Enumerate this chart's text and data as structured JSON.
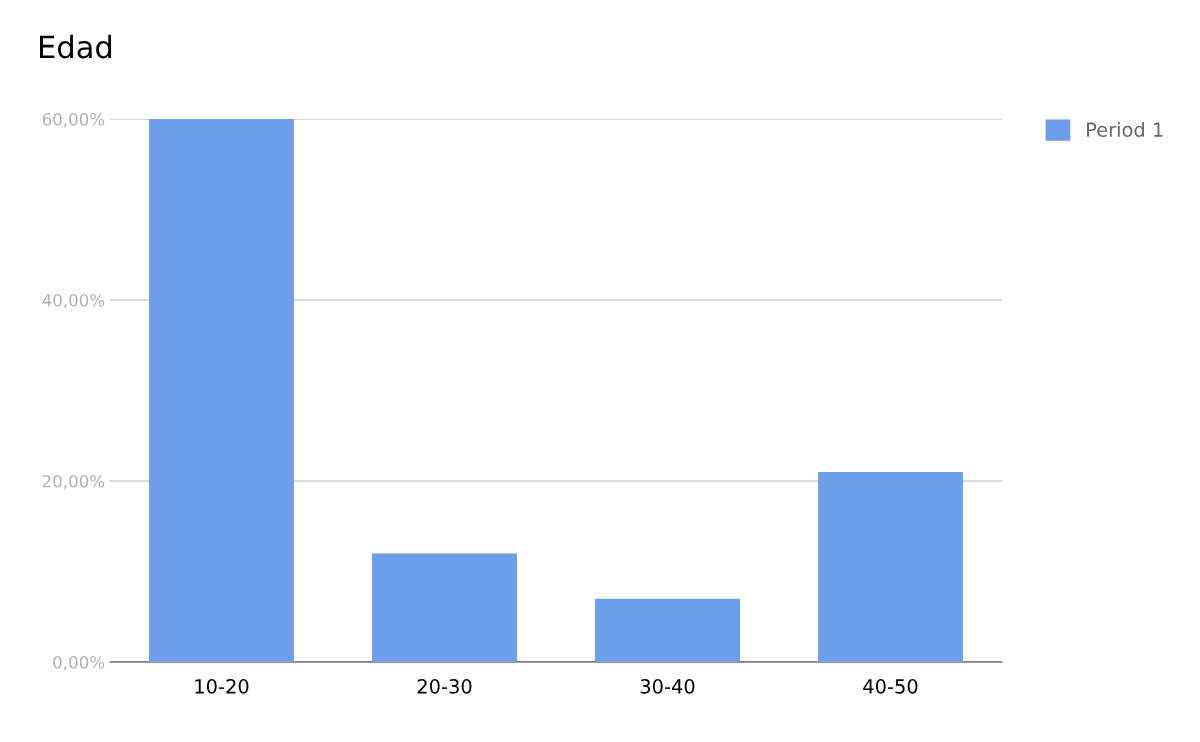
{
  "chart_data": {
    "type": "bar",
    "title": "Edad",
    "categories": [
      "10-20",
      "20-30",
      "30-40",
      "40-50"
    ],
    "series": [
      {
        "name": "Period 1",
        "color": "#6d9eeb",
        "values": [
          60,
          12,
          7,
          21
        ]
      }
    ],
    "ylim": [
      0,
      60
    ],
    "yticks": [
      {
        "value": 0,
        "label": "0,00%"
      },
      {
        "value": 20,
        "label": "20,00%"
      },
      {
        "value": 40,
        "label": "40,00%"
      },
      {
        "value": 60,
        "label": "60,00%"
      }
    ],
    "grid": "y",
    "legend": "top right"
  }
}
